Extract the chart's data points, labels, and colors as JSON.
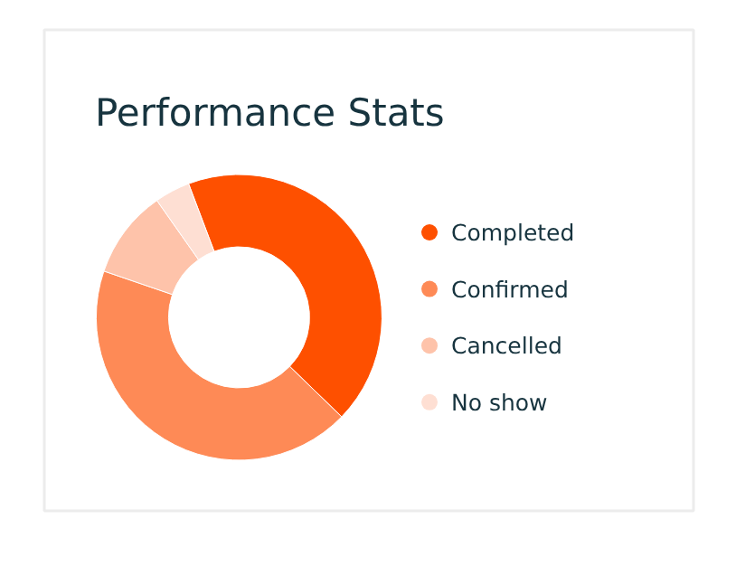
{
  "chart_data": {
    "type": "donut",
    "title": "Performance Stats",
    "categories": [
      "Completed",
      "Confirmed",
      "Cancelled",
      "No show"
    ],
    "values": [
      43,
      43,
      10,
      4
    ],
    "colors": [
      "#fe5000",
      "#fe8a56",
      "#fec3aa",
      "#fedfd3"
    ],
    "legend": "right"
  }
}
